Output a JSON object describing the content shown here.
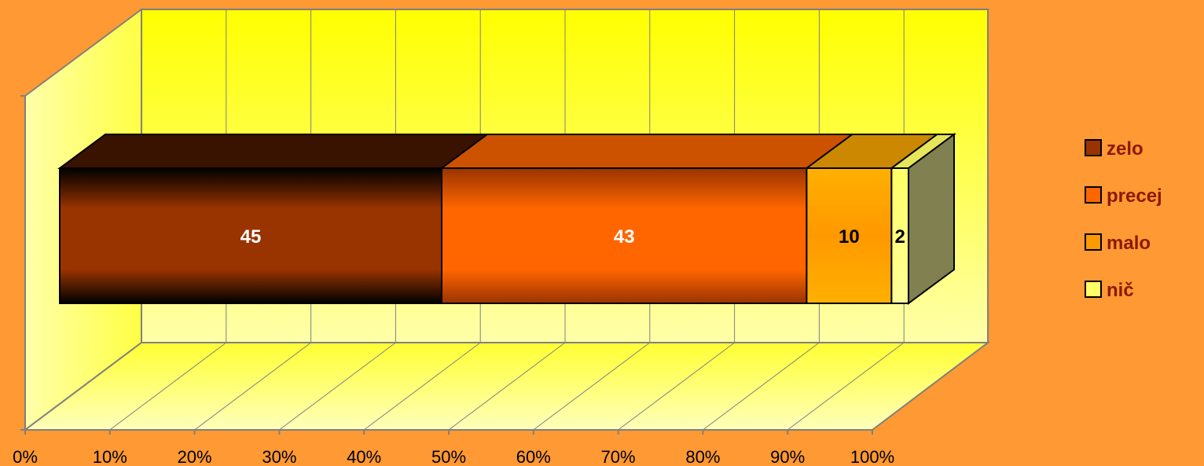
{
  "chart_data": {
    "type": "bar",
    "orientation": "horizontal",
    "stacked": "100%",
    "three_d": true,
    "categories": [
      ""
    ],
    "series": [
      {
        "name": "zelo",
        "values": [
          45
        ]
      },
      {
        "name": "precej",
        "values": [
          43
        ]
      },
      {
        "name": "malo",
        "values": [
          10
        ]
      },
      {
        "name": "nič",
        "values": [
          2
        ]
      }
    ],
    "data_labels": [
      "45",
      "43",
      "10",
      "2"
    ],
    "x_ticks": [
      "0%",
      "10%",
      "20%",
      "30%",
      "40%",
      "50%",
      "60%",
      "70%",
      "80%",
      "90%",
      "100%"
    ],
    "xlim": [
      0,
      100
    ],
    "grid": true,
    "legend_position": "right",
    "colors": {
      "background": "#FF9933",
      "wall": "#FFFF66",
      "zelo": "#993300",
      "precej": "#FF6600",
      "malo": "#FF9900",
      "nic": "#FFFF66"
    }
  }
}
